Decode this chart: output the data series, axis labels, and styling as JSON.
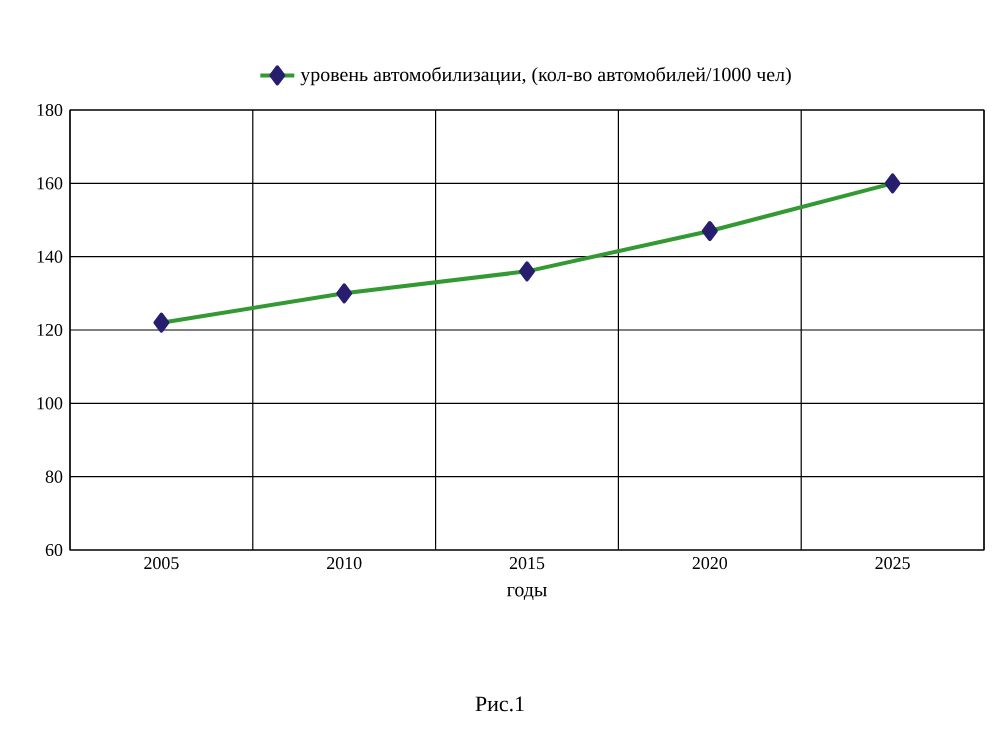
{
  "chart_data": {
    "type": "line",
    "categories": [
      "2005",
      "2010",
      "2015",
      "2020",
      "2025"
    ],
    "series": [
      {
        "name": "уровень автомобилизации, (кол-во автомобилей/1000 чел)",
        "color": "#339933",
        "values": [
          122,
          130,
          136,
          147,
          160
        ]
      }
    ],
    "xlabel": "годы",
    "ylim": [
      60,
      180
    ],
    "yticks": [
      60,
      80,
      100,
      120,
      140,
      160,
      180
    ],
    "grid": true,
    "legend": "top",
    "marker": "diamond",
    "line_style": "solid",
    "annotations": [
      "Рис.1"
    ]
  }
}
